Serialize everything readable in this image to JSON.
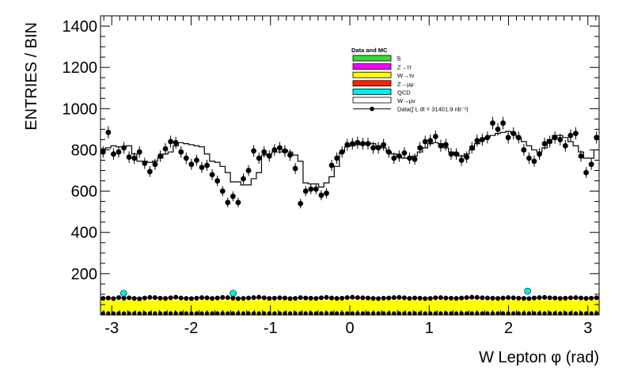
{
  "chart_data": {
    "type": "line",
    "title": "",
    "xlabel": "W Lepton φ (rad)",
    "ylabel": "ENTRIES / BIN",
    "xlim": [
      -3.14159,
      3.14159
    ],
    "ylim": [
      0,
      1450
    ],
    "xticks": [
      "-3",
      "-2",
      "-1",
      "0",
      "1",
      "2",
      "3"
    ],
    "yticks": [
      "200",
      "400",
      "600",
      "800",
      "1000",
      "1200",
      "1400"
    ],
    "legend": {
      "header": "Data and MC",
      "position": "top-center",
      "entries": [
        "t̅t",
        "Z→ττ",
        "W→τν",
        "Z→μμ",
        "QCD",
        "W→μν",
        "Data(∫ L dt = 31401.9 nb⁻¹)"
      ]
    },
    "colors": {
      "ttbar": "#33dd33",
      "ztautau": "#ff00ff",
      "wtaunu": "#ffff00",
      "zmumu": "#ff2200",
      "qcd": "#00eeee",
      "wmunu": "#ffffff",
      "data": "#000000"
    },
    "n_bins": 96,
    "total_mc": [
      805,
      810,
      820,
      815,
      815,
      820,
      780,
      745,
      745,
      740,
      745,
      760,
      780,
      790,
      820,
      835,
      830,
      825,
      820,
      815,
      780,
      745,
      740,
      720,
      690,
      645,
      645,
      630,
      630,
      660,
      690,
      775,
      780,
      790,
      790,
      800,
      790,
      775,
      745,
      640,
      635,
      635,
      620,
      640,
      670,
      720,
      790,
      815,
      820,
      825,
      830,
      835,
      830,
      820,
      810,
      790,
      780,
      770,
      760,
      760,
      770,
      790,
      810,
      830,
      835,
      830,
      810,
      790,
      785,
      770,
      780,
      800,
      830,
      850,
      860,
      870,
      880,
      885,
      890,
      880,
      860,
      840,
      820,
      800,
      790,
      810,
      850,
      870,
      870,
      860,
      840,
      820,
      790,
      760,
      760,
      800
    ],
    "data": [
      790,
      885,
      780,
      790,
      810,
      765,
      760,
      790,
      735,
      695,
      730,
      770,
      805,
      840,
      835,
      790,
      760,
      730,
      750,
      715,
      725,
      680,
      650,
      600,
      545,
      575,
      545,
      660,
      700,
      795,
      760,
      790,
      770,
      800,
      810,
      795,
      775,
      710,
      540,
      600,
      610,
      610,
      580,
      590,
      725,
      760,
      790,
      825,
      830,
      835,
      830,
      830,
      810,
      810,
      825,
      790,
      760,
      770,
      785,
      760,
      755,
      810,
      840,
      845,
      865,
      820,
      825,
      780,
      780,
      750,
      765,
      810,
      845,
      850,
      860,
      930,
      900,
      930,
      860,
      880,
      860,
      800,
      760,
      745,
      780,
      830,
      840,
      860,
      850,
      820,
      870,
      880,
      770,
      690,
      730,
      860
    ],
    "wtaunu": [
      70,
      72,
      68,
      70,
      71,
      69,
      70,
      72,
      71,
      70,
      69,
      70,
      71,
      72,
      70,
      71,
      70,
      69,
      70,
      71,
      72,
      70,
      69,
      71,
      70,
      72,
      71,
      70,
      69,
      70,
      72,
      71,
      70,
      69,
      70,
      71,
      72,
      70,
      69,
      70,
      71,
      70,
      69,
      70,
      71,
      72,
      70,
      71,
      72,
      71,
      70,
      72,
      71,
      70,
      69,
      71,
      70,
      72,
      71,
      70,
      69,
      70,
      71,
      72,
      70,
      71,
      72,
      70,
      69,
      71,
      70,
      72,
      71,
      70,
      69,
      70,
      71,
      72,
      70,
      71,
      70,
      69,
      70,
      71,
      72,
      70,
      69,
      71,
      70,
      72,
      71,
      70,
      69,
      70,
      72,
      71
    ],
    "zmumu_top": [
      83,
      84,
      82,
      83,
      84,
      83,
      82,
      84,
      83,
      82,
      83,
      84,
      83,
      82,
      84,
      83,
      82,
      83,
      84,
      83,
      82,
      84,
      83,
      82,
      83,
      84,
      83,
      82,
      84,
      83,
      82,
      83,
      84,
      83,
      82,
      84,
      83,
      82,
      83,
      84,
      83,
      82,
      84,
      83,
      82,
      83,
      84,
      83,
      82,
      84,
      83,
      82,
      83,
      84,
      83,
      82,
      84,
      83,
      82,
      83,
      84,
      83,
      82,
      84,
      83,
      82,
      83,
      84,
      83,
      82,
      84,
      83,
      82,
      83,
      84,
      83,
      82,
      84,
      83,
      82,
      83,
      84,
      83,
      82,
      84,
      83,
      82,
      83,
      84,
      83,
      82,
      84,
      83,
      82,
      83,
      84
    ],
    "qcd_peaks": [
      {
        "x": -2.85,
        "value": 105
      },
      {
        "x": -1.47,
        "value": 105
      },
      {
        "x": 2.24,
        "value": 115
      }
    ],
    "data_low": [
      80,
      82,
      79,
      84,
      81,
      83,
      80,
      78,
      82,
      85,
      84,
      81,
      80,
      83,
      86,
      82,
      80,
      79,
      81,
      84,
      83,
      80,
      82,
      85,
      84,
      81,
      79,
      80,
      82,
      84,
      86,
      83,
      80,
      81,
      83,
      82,
      79,
      80,
      84,
      82,
      81,
      80,
      83,
      85,
      82,
      80,
      81,
      84,
      86,
      84,
      83,
      82,
      80,
      79,
      81,
      82,
      84,
      85,
      83,
      80,
      82,
      81,
      79,
      80,
      83,
      84,
      82,
      81,
      80,
      82,
      84,
      86,
      85,
      83,
      82,
      81,
      80,
      82,
      84,
      83,
      81,
      80,
      79,
      82,
      84,
      85,
      83,
      82,
      80,
      81,
      83,
      84,
      82,
      80,
      81,
      83
    ]
  }
}
